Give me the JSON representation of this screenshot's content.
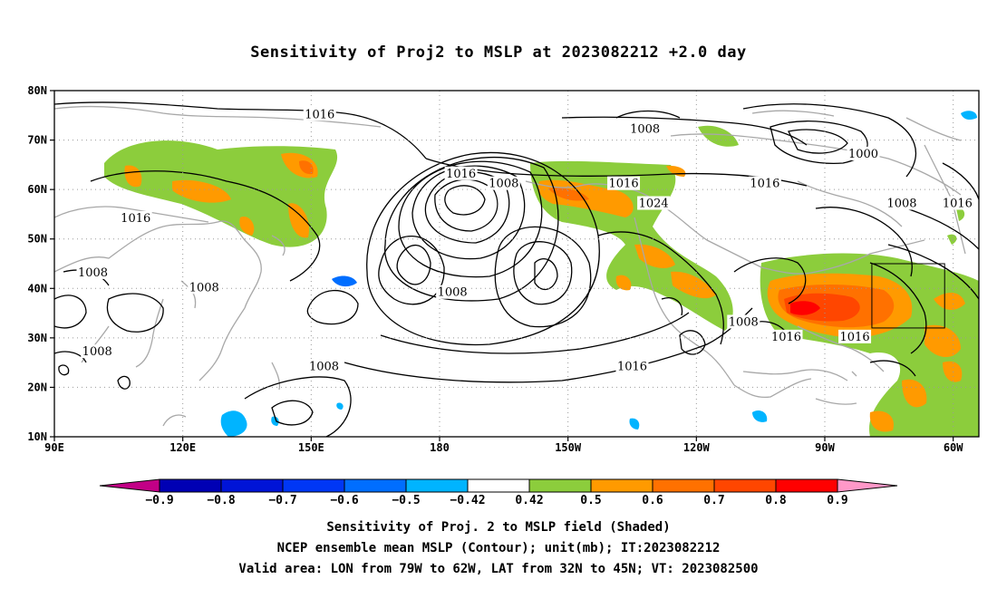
{
  "title": "Sensitivity of Proj2 to MSLP at 2023082212 +2.0 day",
  "map": {
    "lon_range": [
      90,
      306
    ],
    "lat_range": [
      10,
      80
    ],
    "lat_ticks": [
      {
        "lat": 80,
        "label": "80N"
      },
      {
        "lat": 70,
        "label": "70N"
      },
      {
        "lat": 60,
        "label": "60N"
      },
      {
        "lat": 50,
        "label": "50N"
      },
      {
        "lat": 40,
        "label": "40N"
      },
      {
        "lat": 30,
        "label": "30N"
      },
      {
        "lat": 20,
        "label": "20N"
      },
      {
        "lat": 10,
        "label": "10N"
      }
    ],
    "lon_ticks": [
      {
        "lon": 90,
        "label": "90E"
      },
      {
        "lon": 120,
        "label": "120E"
      },
      {
        "lon": 150,
        "label": "150E"
      },
      {
        "lon": 180,
        "label": "180"
      },
      {
        "lon": 210,
        "label": "150W"
      },
      {
        "lon": 240,
        "label": "120W"
      },
      {
        "lon": 270,
        "label": "90W"
      },
      {
        "lon": 300,
        "label": "60W"
      }
    ],
    "contour_labels": [
      {
        "text": "1016",
        "lon": 152,
        "lat": 75
      },
      {
        "text": "1008",
        "lon": 228,
        "lat": 72
      },
      {
        "text": "1000",
        "lon": 279,
        "lat": 67
      },
      {
        "text": "1016",
        "lon": 185,
        "lat": 63
      },
      {
        "text": "1008",
        "lon": 195,
        "lat": 61
      },
      {
        "text": "1016",
        "lon": 223,
        "lat": 61
      },
      {
        "text": "1016",
        "lon": 256,
        "lat": 61
      },
      {
        "text": "1024",
        "lon": 230,
        "lat": 57
      },
      {
        "text": "1016",
        "lon": 109,
        "lat": 54
      },
      {
        "text": "1008",
        "lon": 288,
        "lat": 57
      },
      {
        "text": "1016",
        "lon": 301,
        "lat": 57
      },
      {
        "text": "1008",
        "lon": 99,
        "lat": 43
      },
      {
        "text": "1008",
        "lon": 125,
        "lat": 40
      },
      {
        "text": "1008",
        "lon": 183,
        "lat": 39
      },
      {
        "text": "1008",
        "lon": 251,
        "lat": 33
      },
      {
        "text": "1016",
        "lon": 261,
        "lat": 30
      },
      {
        "text": "1016",
        "lon": 277,
        "lat": 30
      },
      {
        "text": "1008",
        "lon": 100,
        "lat": 27
      },
      {
        "text": "1008",
        "lon": 153,
        "lat": 24
      },
      {
        "text": "1016",
        "lon": 225,
        "lat": 24
      }
    ],
    "valid_box": {
      "lon_min": 281,
      "lon_max": 298,
      "lat_min": 32,
      "lat_max": 45
    }
  },
  "colorbar": {
    "colors": [
      "#c20086",
      "#0000b4",
      "#0014d7",
      "#0037f5",
      "#006eff",
      "#00b4ff",
      "#ffffff",
      "#8ccd3c",
      "#ff9a00",
      "#ff7100",
      "#ff4600",
      "#ff0000",
      "#ff98c8"
    ],
    "labels": [
      "-0.9",
      "-0.8",
      "-0.7",
      "-0.6",
      "-0.5",
      "-0.42",
      "0.42",
      "0.5",
      "0.6",
      "0.7",
      "0.8",
      "0.9"
    ]
  },
  "captions": {
    "line1": "Sensitivity of Proj. 2 to MSLP field (Shaded)",
    "line2": "NCEP ensemble mean MSLP (Contour); unit(mb); IT:2023082212",
    "line3": "Valid area: LON from 79W to 62W, LAT from 32N to 45N; VT: 2023082500"
  }
}
